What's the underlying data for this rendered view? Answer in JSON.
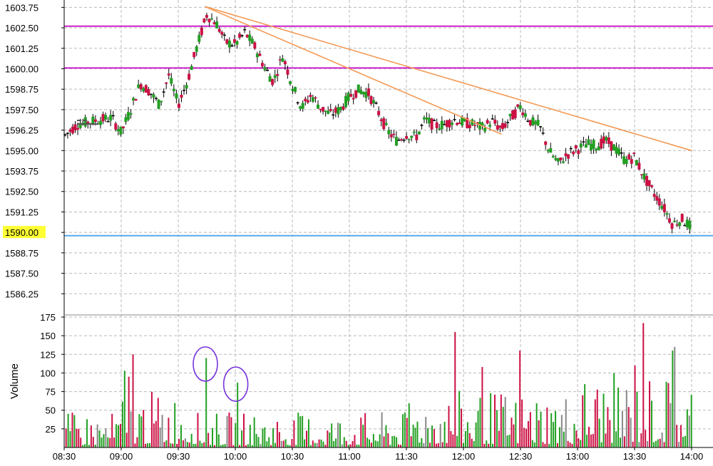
{
  "chart_data": [
    {
      "type": "candlestick",
      "title": "",
      "xlabel": "",
      "ylabel": "",
      "ylim": [
        1585.0,
        1604.2
      ],
      "xlim": [
        "08:30",
        "14:00"
      ],
      "yticks": [
        "1586.25",
        "1587.50",
        "1588.75",
        "1590.00",
        "1591.25",
        "1592.50",
        "1593.75",
        "1595.00",
        "1596.25",
        "1597.50",
        "1598.75",
        "1600.00",
        "1601.25",
        "1602.50",
        "1603.75"
      ],
      "highlighted_price": "1590.00",
      "colors": {
        "up": "#22a022",
        "down": "#cc1144",
        "flat": "#000000",
        "purple_line": "#cc22cc",
        "blue_line": "#55aaee",
        "trend": "#f39a55",
        "highlight": "#ffff33"
      },
      "horizontal_lines": [
        {
          "price": 1602.6,
          "color": "purple"
        },
        {
          "price": 1600.05,
          "color": "purple"
        },
        {
          "price": 1589.8,
          "color": "blue"
        }
      ],
      "trend_lines": [
        {
          "start": [
            "09:44",
            1603.8
          ],
          "end": [
            "14:00",
            1595.0
          ]
        },
        {
          "start": [
            "09:44",
            1603.8
          ],
          "end": [
            "12:20",
            1596.0
          ]
        }
      ],
      "price_path": [
        [
          "08:30",
          1595.9
        ],
        [
          "08:37",
          1596.6
        ],
        [
          "08:45",
          1596.8
        ],
        [
          "08:55",
          1597.0
        ],
        [
          "09:00",
          1596.1
        ],
        [
          "09:05",
          1597.5
        ],
        [
          "09:10",
          1599.1
        ],
        [
          "09:15",
          1598.6
        ],
        [
          "09:20",
          1597.8
        ],
        [
          "09:25",
          1599.6
        ],
        [
          "09:30",
          1597.8
        ],
        [
          "09:35",
          1599.3
        ],
        [
          "09:40",
          1601.4
        ],
        [
          "09:45",
          1603.3
        ],
        [
          "09:50",
          1602.8
        ],
        [
          "09:55",
          1601.6
        ],
        [
          "10:00",
          1601.5
        ],
        [
          "10:05",
          1602.2
        ],
        [
          "10:10",
          1601.4
        ],
        [
          "10:15",
          1600.2
        ],
        [
          "10:20",
          1599.2
        ],
        [
          "10:25",
          1600.8
        ],
        [
          "10:30",
          1599.0
        ],
        [
          "10:35",
          1597.6
        ],
        [
          "10:40",
          1598.4
        ],
        [
          "10:45",
          1597.6
        ],
        [
          "10:50",
          1597.2
        ],
        [
          "10:55",
          1597.5
        ],
        [
          "11:00",
          1598.3
        ],
        [
          "11:05",
          1598.7
        ],
        [
          "11:10",
          1598.5
        ],
        [
          "11:15",
          1597.4
        ],
        [
          "11:20",
          1596.2
        ],
        [
          "11:25",
          1595.6
        ],
        [
          "11:30",
          1596.0
        ],
        [
          "11:35",
          1595.8
        ],
        [
          "11:40",
          1596.9
        ],
        [
          "11:45",
          1596.5
        ],
        [
          "11:50",
          1596.6
        ],
        [
          "11:55",
          1596.9
        ],
        [
          "12:00",
          1596.7
        ],
        [
          "12:05",
          1596.6
        ],
        [
          "12:10",
          1596.4
        ],
        [
          "12:15",
          1596.8
        ],
        [
          "12:20",
          1596.3
        ],
        [
          "12:25",
          1597.0
        ],
        [
          "12:30",
          1597.7
        ],
        [
          "12:35",
          1596.8
        ],
        [
          "12:40",
          1596.5
        ],
        [
          "12:45",
          1595.0
        ],
        [
          "12:50",
          1594.2
        ],
        [
          "12:55",
          1594.8
        ],
        [
          "13:00",
          1595.1
        ],
        [
          "13:05",
          1595.4
        ],
        [
          "13:10",
          1595.3
        ],
        [
          "13:15",
          1595.6
        ],
        [
          "13:20",
          1595.1
        ],
        [
          "13:25",
          1594.4
        ],
        [
          "13:30",
          1594.6
        ],
        [
          "13:35",
          1593.4
        ],
        [
          "13:40",
          1592.4
        ],
        [
          "13:45",
          1591.6
        ],
        [
          "13:50",
          1590.5
        ],
        [
          "13:55",
          1590.8
        ],
        [
          "14:00",
          1590.3
        ]
      ]
    },
    {
      "type": "bar",
      "title": "",
      "xlabel": "",
      "ylabel": "Volume",
      "ylim": [
        0,
        175
      ],
      "yticks": [
        "25",
        "50",
        "75",
        "100",
        "125",
        "150",
        "175"
      ],
      "xticks": [
        "08:30",
        "09:00",
        "09:30",
        "10:00",
        "10:30",
        "11:00",
        "11:30",
        "12:00",
        "12:30",
        "13:00",
        "13:30",
        "14:00"
      ],
      "annotations": [
        {
          "type": "ellipse",
          "time": "09:45",
          "volume": 112,
          "color": "#7733dd"
        },
        {
          "type": "ellipse",
          "time": "10:01",
          "volume": 85,
          "color": "#7733dd"
        }
      ],
      "volume_spikes": [
        [
          "09:02",
          103,
          "up"
        ],
        [
          "09:04",
          95,
          "down"
        ],
        [
          "09:06",
          125,
          "down"
        ],
        [
          "09:45",
          120,
          "up"
        ],
        [
          "10:01",
          87,
          "up"
        ],
        [
          "11:56",
          155,
          "down"
        ],
        [
          "12:10",
          108,
          "down"
        ],
        [
          "12:30",
          130,
          "down"
        ],
        [
          "13:30",
          110,
          "down"
        ],
        [
          "13:35",
          167,
          "down"
        ],
        [
          "13:50",
          130,
          "up"
        ],
        [
          "13:51",
          135,
          "flat"
        ]
      ]
    }
  ]
}
